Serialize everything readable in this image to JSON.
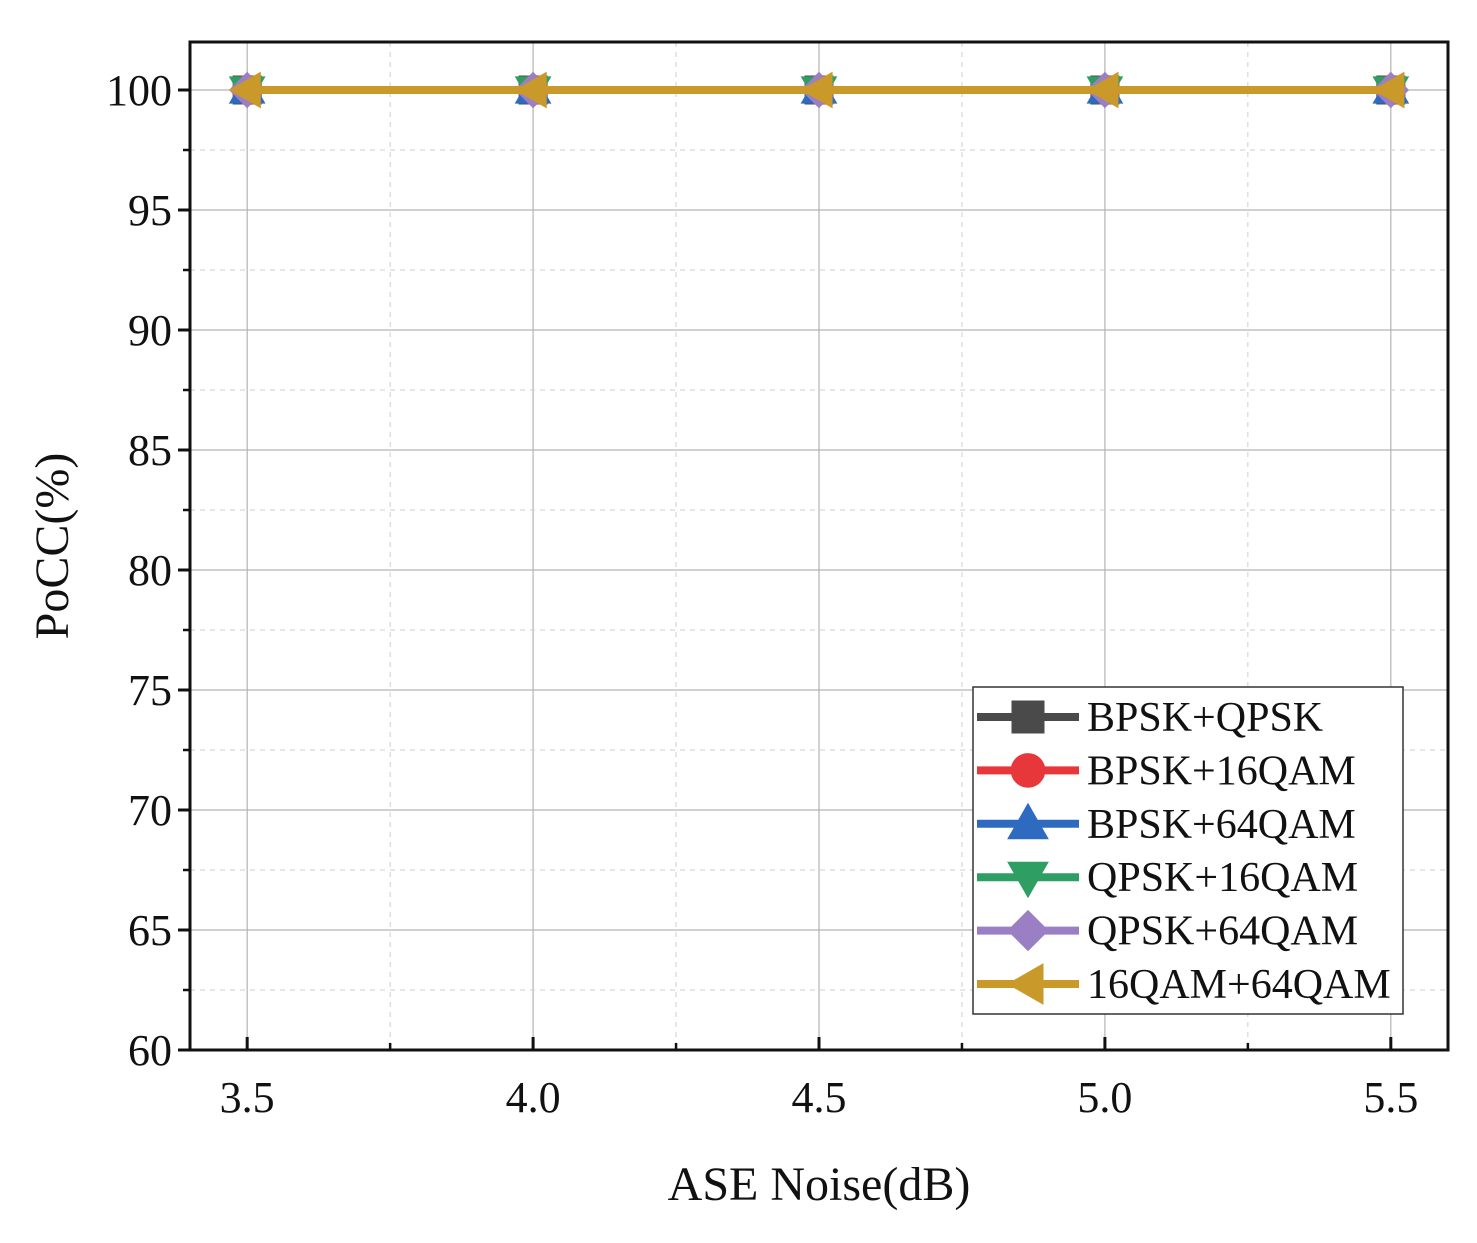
{
  "chart_data": {
    "type": "line",
    "title": "",
    "xlabel": "ASE Noise(dB)",
    "ylabel": "PoCC(%)",
    "xlim": [
      3.4,
      5.6
    ],
    "ylim": [
      60,
      102
    ],
    "x": [
      3.5,
      4.0,
      4.5,
      5.0,
      5.5
    ],
    "x_ticks": [
      "3.5",
      "4.0",
      "4.5",
      "5.0",
      "5.5"
    ],
    "y_ticks": [
      "60",
      "65",
      "70",
      "75",
      "80",
      "85",
      "90",
      "95",
      "100"
    ],
    "grid": true,
    "legend_position": "bottom-right",
    "series": [
      {
        "name": "BPSK+QPSK",
        "values": [
          100,
          100,
          100,
          100,
          100
        ],
        "color": "#4a4a4a",
        "marker": "square"
      },
      {
        "name": "BPSK+16QAM",
        "values": [
          100,
          100,
          100,
          100,
          100
        ],
        "color": "#e8373a",
        "marker": "circle"
      },
      {
        "name": "BPSK+64QAM",
        "values": [
          100,
          100,
          100,
          100,
          100
        ],
        "color": "#2e6bc0",
        "marker": "triangle-up"
      },
      {
        "name": "QPSK+16QAM",
        "values": [
          100,
          100,
          100,
          100,
          100
        ],
        "color": "#2e9e62",
        "marker": "triangle-down"
      },
      {
        "name": "QPSK+64QAM",
        "values": [
          100,
          100,
          100,
          100,
          100
        ],
        "color": "#9b7fc4",
        "marker": "diamond"
      },
      {
        "name": "16QAM+64QAM",
        "values": [
          100,
          100,
          100,
          100,
          100
        ],
        "color": "#c9992a",
        "marker": "triangle-left"
      }
    ]
  }
}
